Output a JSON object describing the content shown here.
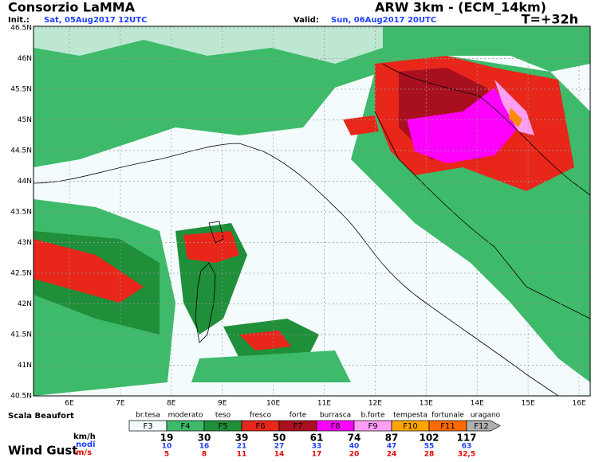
{
  "header": {
    "title": "Consorzio LaMMA",
    "init_label": "Init.:",
    "init_date": "Sat, 05Aug2017 12UTC",
    "model": "ARW 3km - (ECM_14km)",
    "valid_label": "Valid:",
    "valid_date": "Sun, 06Aug2017 20UTC",
    "lead_time": "T=+32h"
  },
  "map": {
    "lat_labels": [
      "46.5N",
      "46N",
      "45.5N",
      "45N",
      "44.5N",
      "44N",
      "43.5N",
      "43N",
      "42.5N",
      "42N",
      "41.5N",
      "41N",
      "40.5N"
    ],
    "lon_labels": [
      "6E",
      "7E",
      "8E",
      "9E",
      "10E",
      "11E",
      "12E",
      "13E",
      "14E",
      "15E",
      "16E"
    ]
  },
  "legend": {
    "title": "Scala Beaufort",
    "variable": "Wind Gust",
    "categories": [
      "br.tesa",
      "moderato",
      "teso",
      "fresco",
      "forte",
      "burrasca",
      "b.forte",
      "tempesta",
      "fortunale",
      "uragano"
    ],
    "forces": [
      "F3",
      "F4",
      "F5",
      "F6",
      "F7",
      "F8",
      "F9",
      "F10",
      "F11",
      "F12"
    ],
    "units": [
      "km/h",
      "nodi",
      "m/s"
    ],
    "kmh": [
      "19",
      "30",
      "39",
      "50",
      "61",
      "74",
      "87",
      "102",
      "117"
    ],
    "knots": [
      "10",
      "16",
      "21",
      "27",
      "33",
      "40",
      "47",
      "55",
      "63"
    ],
    "ms": [
      "5",
      "8",
      "11",
      "14",
      "17",
      "20",
      "24",
      "28",
      "32,5"
    ]
  }
}
